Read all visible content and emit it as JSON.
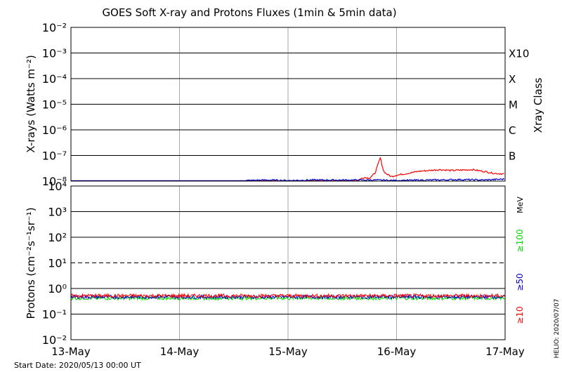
{
  "chart_data": [
    {
      "type": "line",
      "title": "GOES Soft X-ray and Protons Fluxes   (1min & 5min data)",
      "ylabel": "X-rays (Watts m⁻²)",
      "ylabel_right": "Xray Class",
      "yscale": "log",
      "ylim": [
        1e-08,
        0.01
      ],
      "xlim": [
        "2020-05-13 00:00",
        "2020-05-17 00:00"
      ],
      "y_tick_labels": [
        "10⁻⁸",
        "10⁻⁷",
        "10⁻⁶",
        "10⁻⁵",
        "10⁻⁴",
        "10⁻³",
        "10⁻²"
      ],
      "class_labels": [
        {
          "label": "B",
          "value": 1e-07
        },
        {
          "label": "C",
          "value": 1e-06
        },
        {
          "label": "M",
          "value": 1e-05
        },
        {
          "label": "X",
          "value": 0.0001
        },
        {
          "label": "X10",
          "value": 0.001
        }
      ],
      "series": [
        {
          "color": "#ff0000",
          "days": [
            0,
            0.5,
            1.0,
            1.5,
            2.0,
            2.5,
            2.6,
            2.65,
            2.7,
            2.75,
            2.8,
            2.85,
            2.88,
            2.9,
            2.95,
            3.0,
            3.1,
            3.2,
            3.3,
            3.4,
            3.5,
            3.6,
            3.7,
            3.8,
            3.9,
            4.0
          ],
          "values": [
            8e-09,
            8e-09,
            8e-09,
            8e-09,
            8e-09,
            8e-09,
            9e-09,
            1.1e-08,
            1.4e-08,
            1.3e-08,
            2e-08,
            8e-08,
            2.5e-08,
            2e-08,
            1.5e-08,
            1.7e-08,
            2e-08,
            2.4e-08,
            2.6e-08,
            2.8e-08,
            2.6e-08,
            2.7e-08,
            2.8e-08,
            2.4e-08,
            2e-08,
            1.9e-08
          ]
        },
        {
          "color": "#0000cc",
          "days": [
            0,
            0.6,
            0.65,
            0.9,
            1.3,
            1.5,
            1.6,
            1.8,
            2.0,
            2.2,
            2.5,
            2.8,
            3.0,
            3.3,
            3.6,
            3.8,
            4.0
          ],
          "values": [
            7e-09,
            7e-09,
            9e-09,
            9e-09,
            9e-09,
            9e-09,
            1.05e-08,
            1.1e-08,
            1.05e-08,
            1.1e-08,
            1.1e-08,
            1.1e-08,
            1.05e-08,
            1.1e-08,
            1.15e-08,
            1.1e-08,
            1.2e-08
          ]
        }
      ]
    },
    {
      "type": "line",
      "ylabel": "Protons (cm⁻²s⁻¹sr⁻¹)",
      "yscale": "log",
      "ylim": [
        0.01,
        10000
      ],
      "y_tick_labels": [
        "10⁻²",
        "10⁻¹",
        "10⁰",
        "10¹",
        "10²",
        "10³",
        "10⁴"
      ],
      "x_tick_labels": [
        "13-May",
        "14-May",
        "15-May",
        "16-May",
        "17-May"
      ],
      "threshold": 10,
      "energy_unit": "MeV",
      "energy_labels": [
        {
          "label": "≥100",
          "color": "#00dd00"
        },
        {
          "label": "≥50",
          "color": "#0000cc"
        },
        {
          "label": "≥10",
          "color": "#ff0000"
        }
      ],
      "series": [
        {
          "color": "#ff0000",
          "mean": 0.52
        },
        {
          "color": "#0000cc",
          "mean": 0.47
        },
        {
          "color": "#00dd00",
          "mean": 0.42
        }
      ]
    }
  ],
  "footer": {
    "start_date": "Start Date: 2020/05/13 00:00 UT",
    "stamp": "HELIO: 2020/07/07"
  }
}
